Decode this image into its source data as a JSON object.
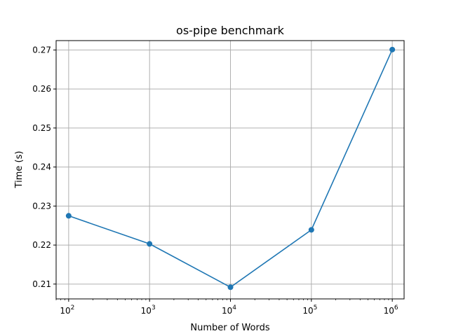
{
  "chart_data": {
    "type": "line",
    "title": "os-pipe benchmark",
    "xlabel": "Number of Words",
    "ylabel": "Time (s)",
    "xscale": "log",
    "grid": true,
    "xlim": [
      70,
      1400000
    ],
    "ylim": [
      0.2062,
      0.2724
    ],
    "x": [
      100,
      1000,
      10000,
      100000,
      1000000
    ],
    "x_tick_labels": [
      {
        "base": "10",
        "exp": "2"
      },
      {
        "base": "10",
        "exp": "3"
      },
      {
        "base": "10",
        "exp": "4"
      },
      {
        "base": "10",
        "exp": "5"
      },
      {
        "base": "10",
        "exp": "6"
      }
    ],
    "y_ticks": [
      0.21,
      0.22,
      0.23,
      0.24,
      0.25,
      0.26,
      0.27
    ],
    "y_tick_labels": [
      "0.21",
      "0.22",
      "0.23",
      "0.24",
      "0.25",
      "0.26",
      "0.27"
    ],
    "series": [
      {
        "values": [
          0.2275,
          0.2203,
          0.2092,
          0.2239,
          0.2701
        ],
        "color": "#1f77b4",
        "marker": "circle"
      }
    ]
  }
}
